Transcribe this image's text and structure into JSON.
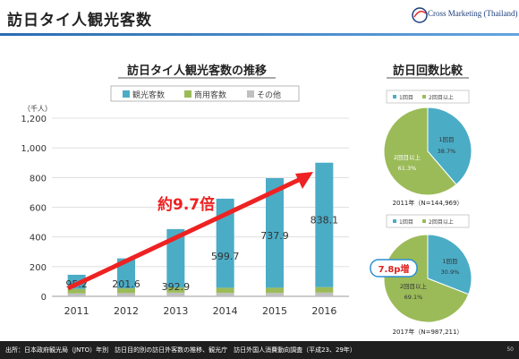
{
  "header": {
    "title": "訪日タイ人観光客数",
    "logo_text": "Cross Marketing (Thailand)"
  },
  "footer": {
    "source": "出所：日本政府観光局（JNTO）年別　訪日目的別の訪日外客数の推移、観光庁　訪日外国人消費動向調査（平成23、29年）",
    "page": "50"
  },
  "colors": {
    "tourism": "#4bacc6",
    "business": "#9bbb59",
    "other": "#c0c0c0",
    "arrow": "#ee2222",
    "pie_first": "#4bacc6",
    "pie_repeat": "#9bbb59"
  },
  "annotation": {
    "growth": "約9.7倍",
    "pie_increase": "7.8p増"
  },
  "chart_data": [
    {
      "type": "bar",
      "title": "訪日タイ人観光客数の推移",
      "ylabel": "（千人）",
      "categories": [
        "2011",
        "2012",
        "2013",
        "2014",
        "2015",
        "2016"
      ],
      "ylim": [
        0,
        1200
      ],
      "yticks": [
        "0",
        "200",
        "400",
        "600",
        "800",
        "1,000",
        "1,200"
      ],
      "series": [
        {
          "name": "観光客数",
          "values": [
            95.2,
            201.6,
            392.9,
            599.7,
            737.9,
            838.1
          ]
        },
        {
          "name": "商用客数",
          "values": [
            30,
            32,
            35,
            35,
            35,
            37
          ]
        },
        {
          "name": "その他",
          "values": [
            20,
            22,
            25,
            23,
            23,
            25
          ]
        }
      ],
      "data_labels": [
        "95.2",
        "201.6",
        "392.9",
        "599.7",
        "737.9",
        "838.1"
      ],
      "legend": "top",
      "grid": true
    },
    {
      "type": "pie",
      "title": "訪日回数比較",
      "legend_labels": [
        "1回目",
        "2回目以上"
      ],
      "caption": "2011年（N=144,969）",
      "slices": [
        {
          "name": "1回目",
          "value": 38.7,
          "label": "38.7%"
        },
        {
          "name": "2回目以上",
          "value": 61.3,
          "label": "61.3%"
        }
      ]
    },
    {
      "type": "pie",
      "legend_labels": [
        "1回目",
        "2回目以上"
      ],
      "caption": "2017年（N=987,211）",
      "slices": [
        {
          "name": "1回目",
          "value": 30.9,
          "label": "30.9%"
        },
        {
          "name": "2回目以上",
          "value": 69.1,
          "label": "69.1%"
        }
      ]
    }
  ]
}
